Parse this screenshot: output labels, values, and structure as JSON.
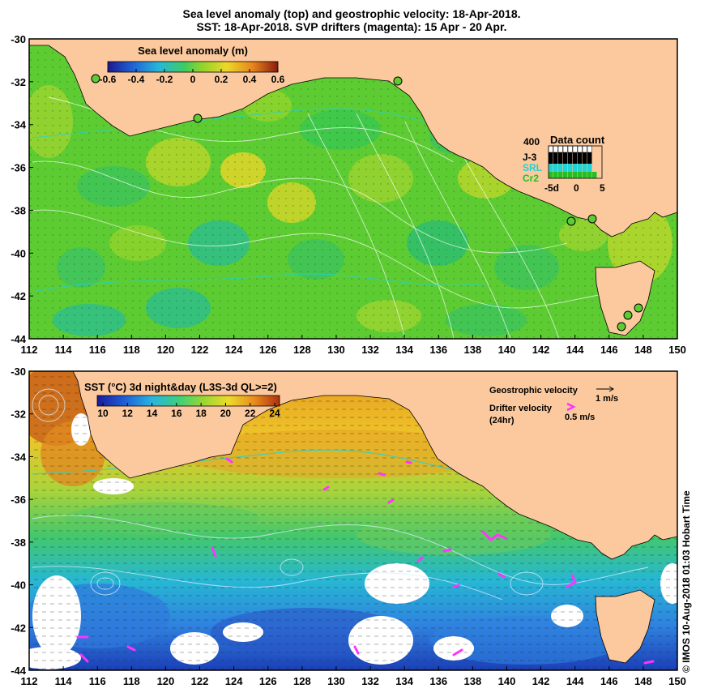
{
  "title": {
    "line1": "Sea level anomaly (top) and geostrophic velocity: 18-Apr-2018.",
    "line2": "SST: 18-Apr-2018. SVP drifters (magenta): 15 Apr - 20 Apr."
  },
  "map": {
    "lon_ticks": [
      "112",
      "114",
      "116",
      "118",
      "120",
      "122",
      "124",
      "126",
      "128",
      "130",
      "132",
      "134",
      "136",
      "138",
      "140",
      "142",
      "144",
      "146",
      "148",
      "150"
    ],
    "lat_ticks": [
      "-30",
      "-32",
      "-34",
      "-36",
      "-38",
      "-40",
      "-42",
      "-44"
    ]
  },
  "top_panel": {
    "colorbar_title": "Sea level anomaly (m)",
    "colorbar_ticks": [
      "-0.6",
      "-0.4",
      "-0.2",
      "0",
      "0.2",
      "0.4",
      "0.6"
    ],
    "data_count": {
      "title": "Data count",
      "max_label": "400",
      "series": [
        {
          "name": "J-3",
          "color": "#000000"
        },
        {
          "name": "SRL",
          "color": "#22d3d3"
        },
        {
          "name": "Cr2",
          "color": "#22c022"
        }
      ],
      "x_ticks": [
        "-5d",
        "0",
        "5"
      ]
    }
  },
  "bottom_panel": {
    "colorbar_title": "SST (°C) 3d night&day (L3S-3d QL>=2)",
    "colorbar_ticks": [
      "10",
      "12",
      "14",
      "16",
      "18",
      "20",
      "22",
      "24"
    ],
    "geo_velocity_label": "Geostrophic velocity",
    "geo_velocity_scale": "1 m/s",
    "drifter_label_1": "Drifter velocity",
    "drifter_label_2": "(24hr)",
    "drifter_scale": "0.5 m/s"
  },
  "credit": "© IMOS 10-Aug-2018 01:03 Hobart Time",
  "colors": {
    "land": "#fbc99d",
    "sla_background": "#5dcc32",
    "drifter": "#ff33ff",
    "contour": "#bfe8ff"
  }
}
